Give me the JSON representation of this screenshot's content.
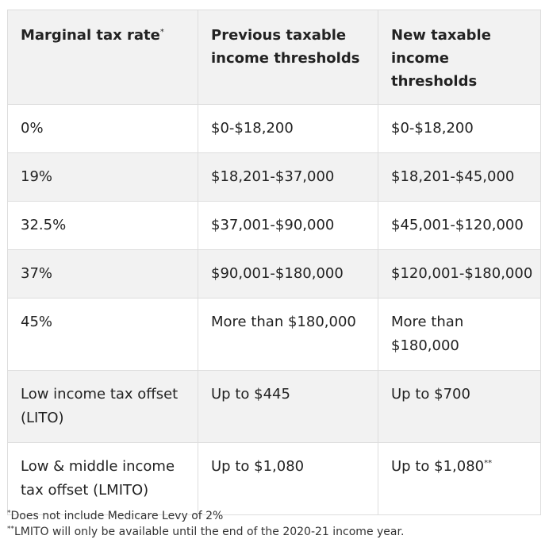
{
  "table": {
    "headers": [
      {
        "text": "Marginal tax rate",
        "sup": "*"
      },
      {
        "text": "Previous taxable income thresholds",
        "sup": ""
      },
      {
        "text": "New taxable income thresholds",
        "sup": ""
      }
    ],
    "rows": [
      {
        "rate": "0%",
        "previous": "$0-$18,200",
        "new": "$0-$18,200",
        "new_sup": ""
      },
      {
        "rate": "19%",
        "previous": "$18,201-$37,000",
        "new": "$18,201-$45,000",
        "new_sup": ""
      },
      {
        "rate": "32.5%",
        "previous": "$37,001-$90,000",
        "new": "$45,001-$120,000",
        "new_sup": ""
      },
      {
        "rate": "37%",
        "previous": "$90,001-$180,000",
        "new": "$120,001-$180,000",
        "new_sup": ""
      },
      {
        "rate": "45%",
        "previous": "More than $180,000",
        "new": "More than $180,000",
        "new_sup": ""
      },
      {
        "rate": "Low income tax offset (LITO)",
        "previous": "Up to $445",
        "new": "Up to $700",
        "new_sup": ""
      },
      {
        "rate": "Low & middle income tax offset (LMITO)",
        "previous": "Up to $1,080",
        "new": "Up to $1,080",
        "new_sup": "**"
      }
    ]
  },
  "footnotes": [
    {
      "mark": "*",
      "text": "Does not include Medicare Levy of 2%"
    },
    {
      "mark": "**",
      "text": "LMITO will only be available until the end of the 2020-21 income year."
    }
  ]
}
